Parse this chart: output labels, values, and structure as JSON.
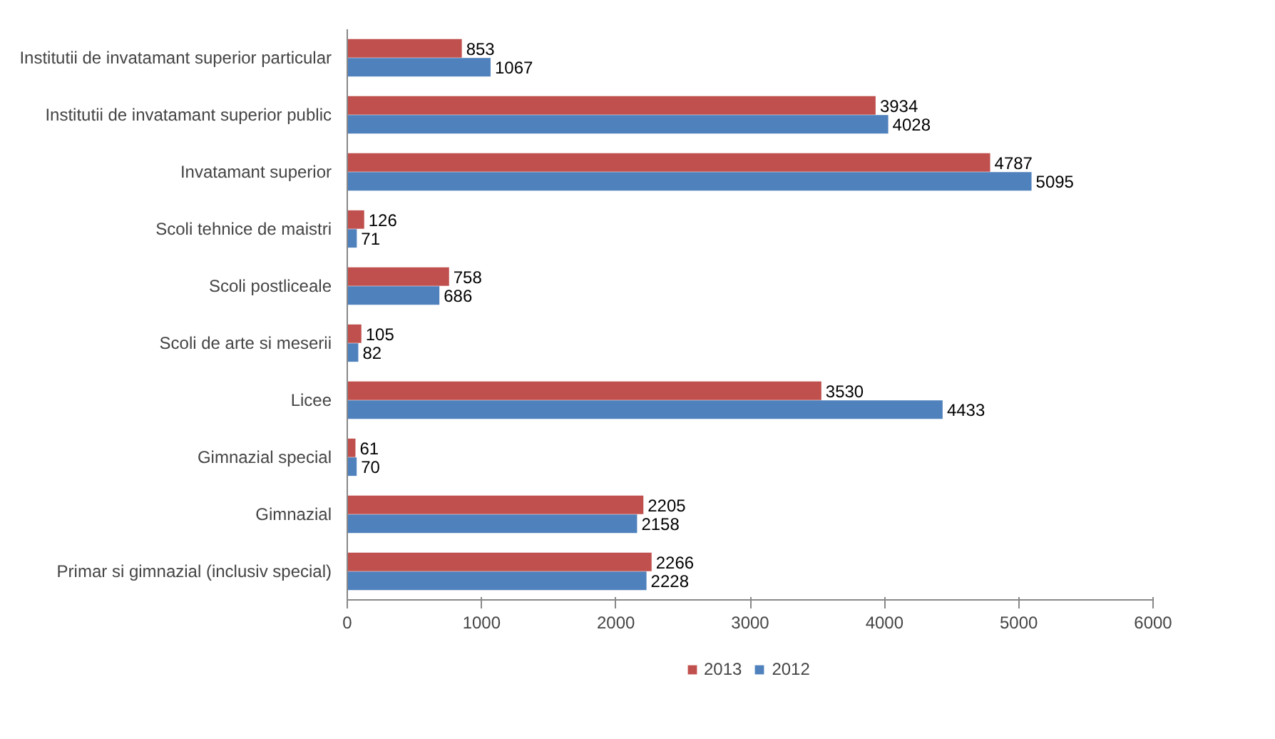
{
  "chart_data": {
    "type": "bar",
    "orientation": "horizontal",
    "categories": [
      "Institutii de invatamant superior particular",
      "Institutii de invatamant superior public",
      "Invatamant superior",
      "Scoli tehnice de maistri",
      "Scoli postliceale",
      "Scoli de arte si meserii",
      "Licee",
      "Gimnazial special",
      "Gimnazial",
      "Primar si gimnazial (inclusiv special)"
    ],
    "series": [
      {
        "name": "2013",
        "color": "#c0504d",
        "values": [
          853,
          3934,
          4787,
          126,
          758,
          105,
          3530,
          61,
          2205,
          2266
        ]
      },
      {
        "name": "2012",
        "color": "#4f81bd",
        "values": [
          1067,
          4028,
          5095,
          71,
          686,
          82,
          4433,
          70,
          2158,
          2228
        ]
      }
    ],
    "xlim": [
      0,
      6000
    ],
    "xticks": [
      0,
      1000,
      2000,
      3000,
      4000,
      5000,
      6000
    ],
    "grid": false,
    "legend": "bottom",
    "data_labels": true
  }
}
